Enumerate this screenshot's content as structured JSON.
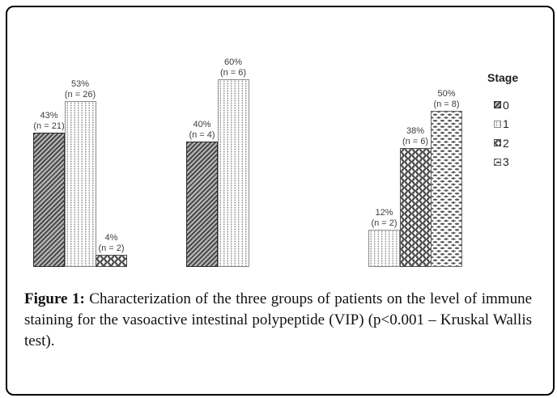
{
  "caption": {
    "label": "Figure 1:",
    "text_rest": "Characterization of the three groups of patients on the level of immune staining for the vasoactive intestinal polypeptide (VIP) (p<0.001 – Kruskal Wallis test)."
  },
  "legend": {
    "title": "Stage",
    "items": [
      {
        "stage": "0",
        "pattern": "diagonal-hatch"
      },
      {
        "stage": "1",
        "pattern": "dots"
      },
      {
        "stage": "2",
        "pattern": "scales"
      },
      {
        "stage": "3",
        "pattern": "dashes"
      }
    ]
  },
  "chart_data": {
    "type": "bar",
    "unit": "percent",
    "ylim": [
      0,
      65
    ],
    "grid": false,
    "axes_visible": false,
    "legend_position": "right",
    "legend_title": "Stage",
    "groups": [
      {
        "name": "group-1",
        "bars": [
          {
            "stage": "0",
            "value": 43,
            "n": 21,
            "value_label": "43%",
            "n_label": "(n = 21)"
          },
          {
            "stage": "1",
            "value": 53,
            "n": 26,
            "value_label": "53%",
            "n_label": "(n = 26)"
          },
          {
            "stage": "2",
            "value": 4,
            "n": 2,
            "value_label": "4%",
            "n_label": "(n = 2)"
          }
        ]
      },
      {
        "name": "group-2",
        "bars": [
          {
            "stage": "0",
            "value": 40,
            "n": 4,
            "value_label": "40%",
            "n_label": "(n = 4)"
          },
          {
            "stage": "1",
            "value": 60,
            "n": 6,
            "value_label": "60%",
            "n_label": "(n = 6)"
          }
        ]
      },
      {
        "name": "group-3",
        "bars": [
          {
            "stage": "1",
            "value": 12,
            "n": 2,
            "value_label": "12%",
            "n_label": "(n = 2)"
          },
          {
            "stage": "2",
            "value": 38,
            "n": 6,
            "value_label": "38%",
            "n_label": "(n = 6)"
          },
          {
            "stage": "3",
            "value": 50,
            "n": 8,
            "value_label": "50%",
            "n_label": "(n = 8)"
          }
        ]
      }
    ]
  },
  "colors": {
    "border": "#000000",
    "background": "#ffffff",
    "bar_label_text": "#3c3c3c",
    "caption_text": "#111111",
    "hatch_dark": "#3f3f3f",
    "pattern_gray": "#555555"
  }
}
